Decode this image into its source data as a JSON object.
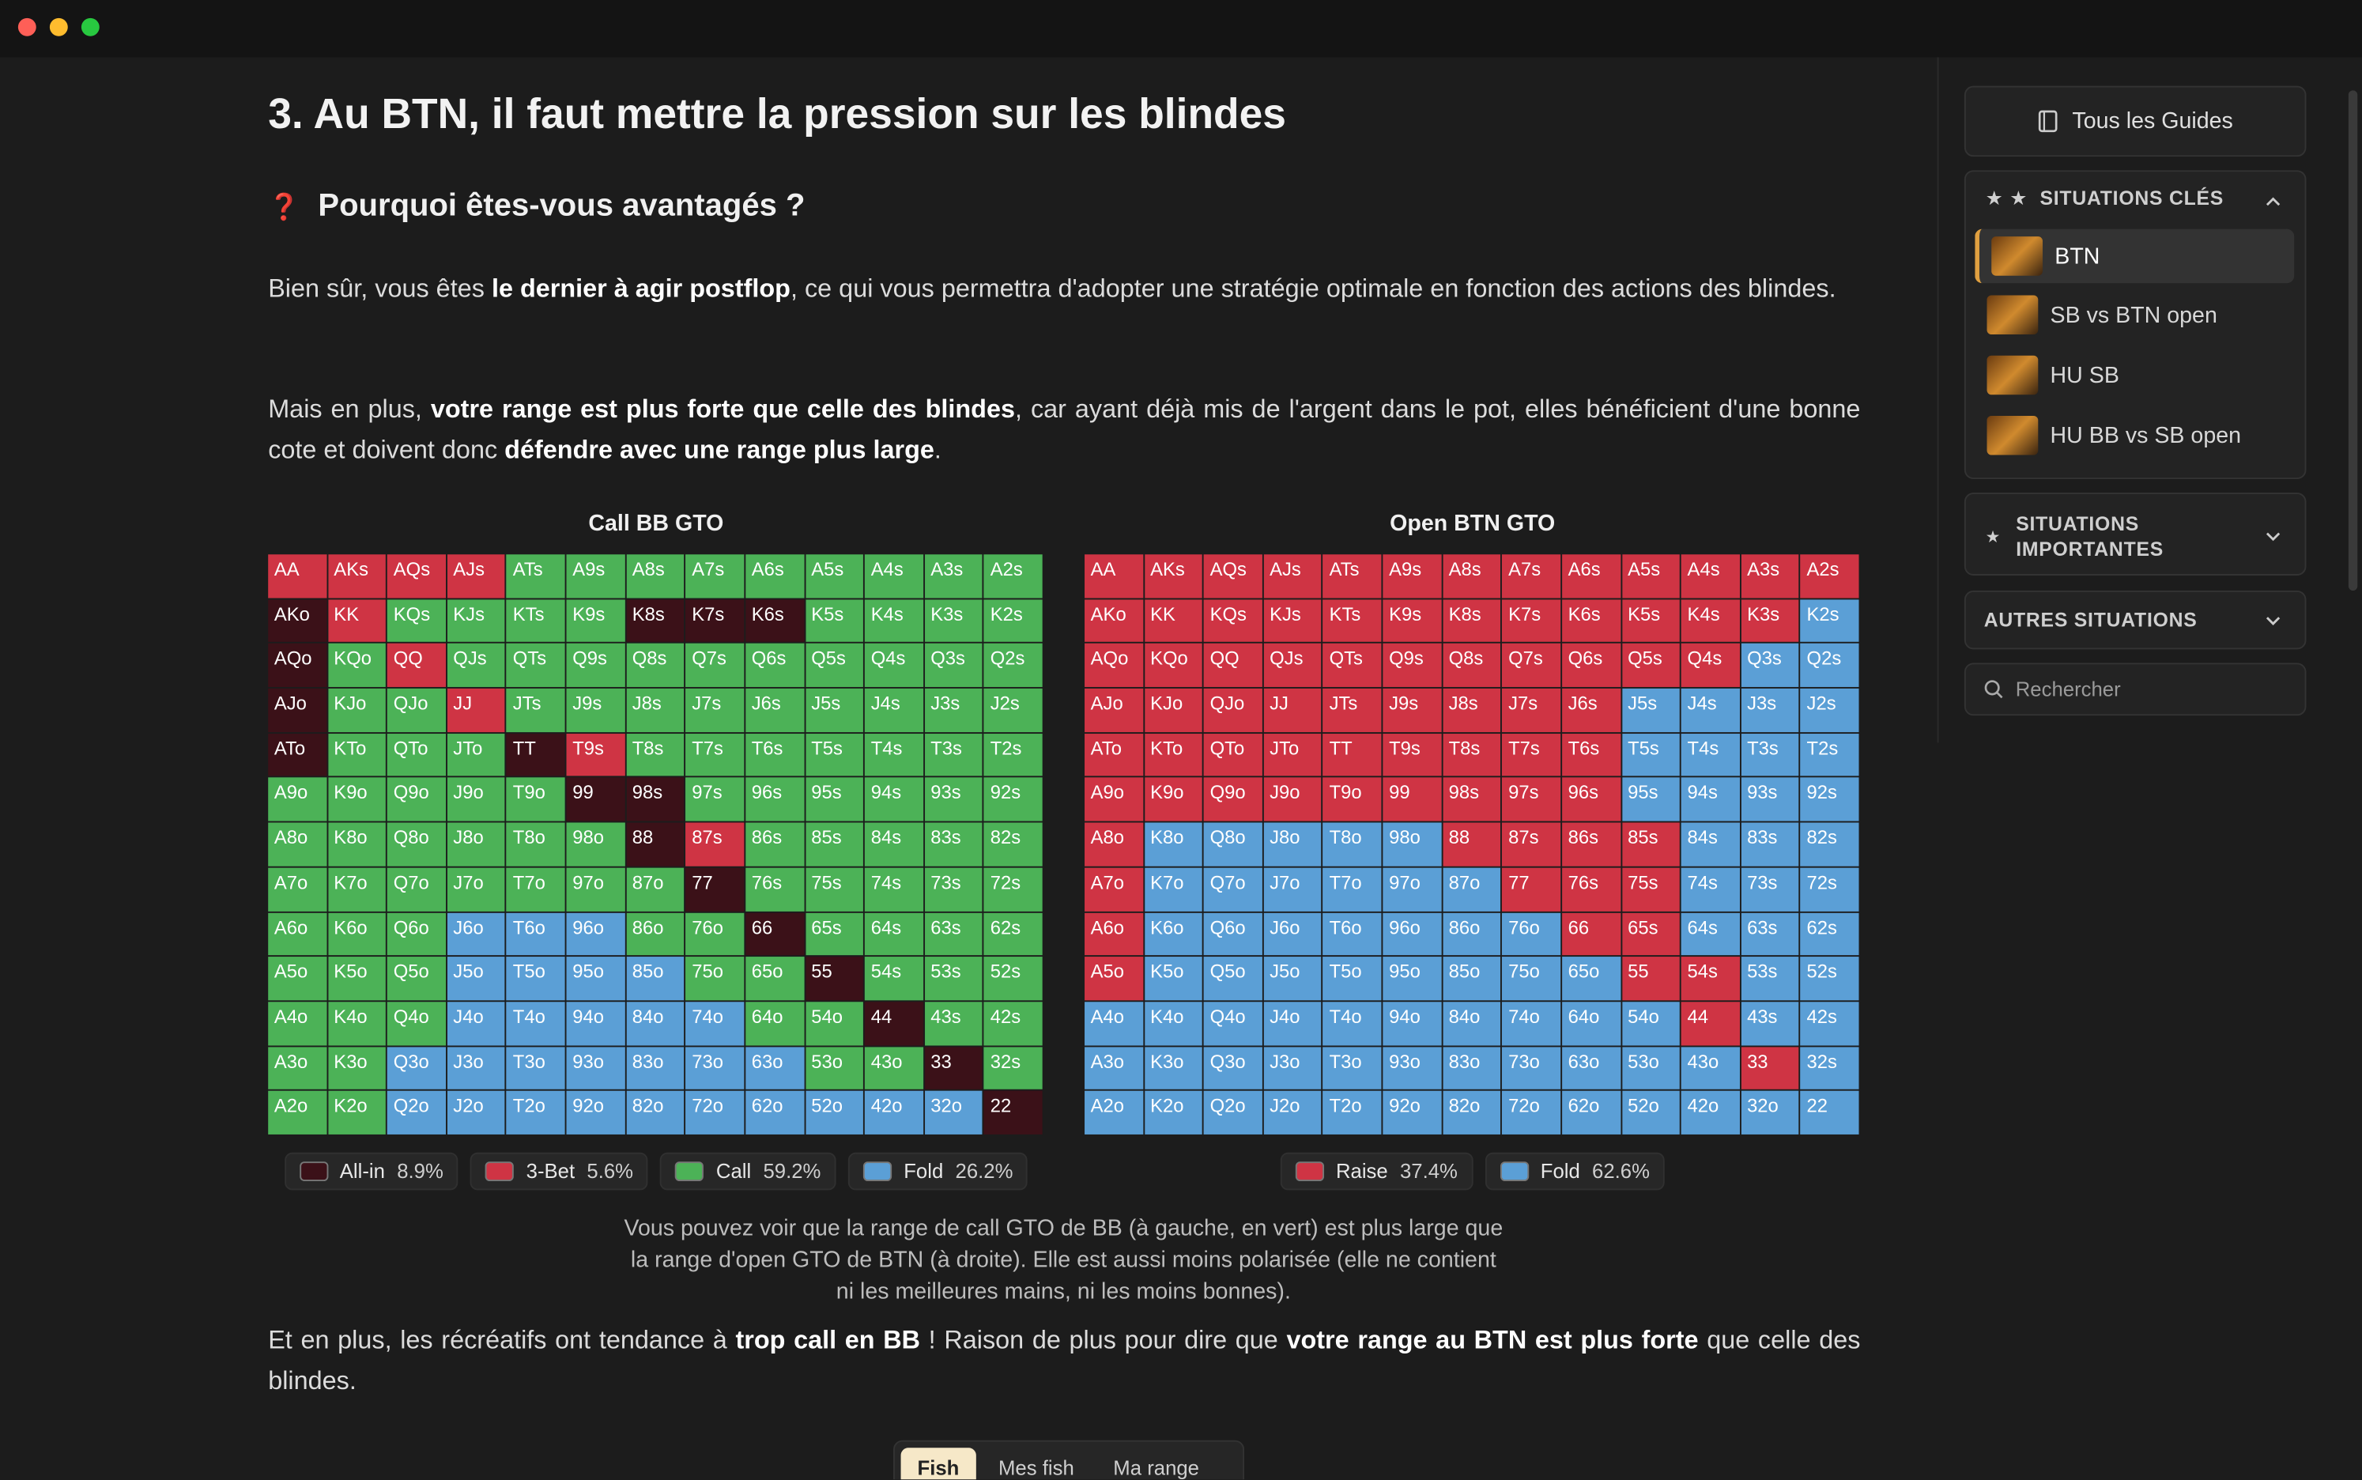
{
  "article": {
    "title": "3. Au BTN, il faut mettre la pression sur les blindes",
    "subtitle_icon": "❓",
    "subtitle": "Pourquoi êtes-vous avantagés ?",
    "paragraphs": [
      [
        "Bien sûr, vous êtes ",
        "le dernier à agir postflop",
        ", ce qui vous permettra d'adopter une stratégie optimale en fonction des actions des blindes."
      ],
      [
        "Mais en plus, ",
        "votre range est plus forte que celle des blindes",
        ", car ayant déjà mis de l'argent dans le pot, elles bénéficient d'une bonne cote et doivent donc ",
        "défendre avec une range plus large",
        "."
      ]
    ],
    "hands": [
      [
        "AA",
        "AKs",
        "AQs",
        "AJs",
        "ATs",
        "A9s",
        "A8s",
        "A7s",
        "A6s",
        "A5s",
        "A4s",
        "A3s",
        "A2s"
      ],
      [
        "AKo",
        "KK",
        "KQs",
        "KJs",
        "KTs",
        "K9s",
        "K8s",
        "K7s",
        "K6s",
        "K5s",
        "K4s",
        "K3s",
        "K2s"
      ],
      [
        "AQo",
        "KQo",
        "QQ",
        "QJs",
        "QTs",
        "Q9s",
        "Q8s",
        "Q7s",
        "Q6s",
        "Q5s",
        "Q4s",
        "Q3s",
        "Q2s"
      ],
      [
        "AJo",
        "KJo",
        "QJo",
        "JJ",
        "JTs",
        "J9s",
        "J8s",
        "J7s",
        "J6s",
        "J5s",
        "J4s",
        "J3s",
        "J2s"
      ],
      [
        "ATo",
        "KTo",
        "QTo",
        "JTo",
        "TT",
        "T9s",
        "T8s",
        "T7s",
        "T6s",
        "T5s",
        "T4s",
        "T3s",
        "T2s"
      ],
      [
        "A9o",
        "K9o",
        "Q9o",
        "J9o",
        "T9o",
        "99",
        "98s",
        "97s",
        "96s",
        "95s",
        "94s",
        "93s",
        "92s"
      ],
      [
        "A8o",
        "K8o",
        "Q8o",
        "J8o",
        "T8o",
        "98o",
        "88",
        "87s",
        "86s",
        "85s",
        "84s",
        "83s",
        "82s"
      ],
      [
        "A7o",
        "K7o",
        "Q7o",
        "J7o",
        "T7o",
        "97o",
        "87o",
        "77",
        "76s",
        "75s",
        "74s",
        "73s",
        "72s"
      ],
      [
        "A6o",
        "K6o",
        "Q6o",
        "J6o",
        "T6o",
        "96o",
        "86o",
        "76o",
        "66",
        "65s",
        "64s",
        "63s",
        "62s"
      ],
      [
        "A5o",
        "K5o",
        "Q5o",
        "J5o",
        "T5o",
        "95o",
        "85o",
        "75o",
        "65o",
        "55",
        "54s",
        "53s",
        "52s"
      ],
      [
        "A4o",
        "K4o",
        "Q4o",
        "J4o",
        "T4o",
        "94o",
        "84o",
        "74o",
        "64o",
        "54o",
        "44",
        "43s",
        "42s"
      ],
      [
        "A3o",
        "K3o",
        "Q3o",
        "J3o",
        "T3o",
        "93o",
        "83o",
        "73o",
        "63o",
        "53o",
        "43o",
        "33",
        "32s"
      ],
      [
        "A2o",
        "K2o",
        "Q2o",
        "J2o",
        "T2o",
        "92o",
        "82o",
        "72o",
        "62o",
        "52o",
        "42o",
        "32o",
        "22"
      ]
    ],
    "grids": [
      {
        "title": "Call BB GTO",
        "actions": [
          "1111222222222",
          "0122220002222",
          "0212222222222",
          "0221222222222",
          "0222012222222",
          "2222200222222",
          "2222220122222",
          "2222222022222",
          "2223332202222",
          "2223333220222",
          "2223333322022",
          "2233333332202",
          "2233333333330"
        ],
        "legend": [
          {
            "label": "All-in",
            "share": "8.9%",
            "color": "#3b1118"
          },
          {
            "label": "3-Bet",
            "share": "5.6%",
            "color": "#cf3444"
          },
          {
            "label": "Call",
            "share": "59.2%",
            "color": "#4cb257"
          },
          {
            "label": "Fold",
            "share": "26.2%",
            "color": "#5b9fd6"
          }
        ]
      },
      {
        "title": "Open BTN GTO",
        "actions": [
          "0000000000000",
          "0000000000001",
          "0000000000011",
          "0000000001111",
          "0000000001111",
          "0000000001111",
          "0111110000111",
          "0111111000111",
          "0111111100111",
          "0111111110011",
          "1111111111011",
          "1111111111101",
          "1111111111111"
        ],
        "legend": [
          {
            "label": "Raise",
            "share": "37.4%",
            "color": "#cf3444"
          },
          {
            "label": "Fold",
            "share": "62.6%",
            "color": "#5b9fd6"
          }
        ]
      }
    ],
    "caption": [
      "Vous pouvez voir que la range de call GTO de BB (à gauche, en vert) est plus large que",
      "la range d'open GTO de BTN (à droite). Elle est aussi moins polarisée (elle ne contient",
      "ni les meilleures mains, ni les moins bonnes)."
    ],
    "closing": [
      "Et en plus, les récréatifs ont tendance à ",
      "trop call en BB",
      " ! Raison de plus pour dire que ",
      "votre range au BTN est plus forte",
      " que celle des blindes."
    ],
    "tabs": [
      "Fish",
      "Mes fish",
      "Ma range"
    ]
  },
  "sidebar": {
    "guides_button": "Tous les Guides",
    "key_section": {
      "stars": "★ ★",
      "title": "SITUATIONS CLÉS",
      "items": [
        "BTN",
        "SB vs BTN open",
        "HU SB",
        "HU BB vs SB open"
      ]
    },
    "important_section": {
      "star": "★",
      "title": "SITUATIONS IMPORTANTES"
    },
    "other_section": {
      "title": "AUTRES SITUATIONS"
    },
    "search_placeholder": "Rechercher"
  }
}
